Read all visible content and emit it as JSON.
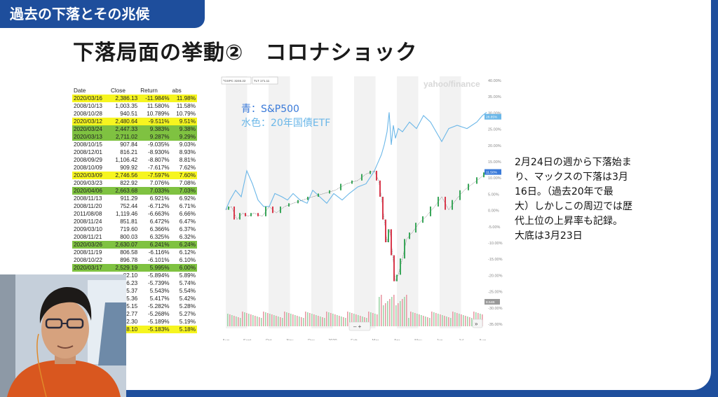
{
  "header": {
    "section_label": "過去の下落とその兆候"
  },
  "slide": {
    "title": "下落局面の挙動②　コロナショック"
  },
  "table": {
    "columns": [
      "Date",
      "Close",
      "Return",
      "abs"
    ],
    "rows": [
      {
        "date": "2020/03/16",
        "close": "2,386.13",
        "ret": "-11.984%",
        "abs": "11.98%",
        "hl": "yellow"
      },
      {
        "date": "2008/10/13",
        "close": "1,003.35",
        "ret": "11.580%",
        "abs": "11.58%",
        "hl": ""
      },
      {
        "date": "2008/10/28",
        "close": "940.51",
        "ret": "10.789%",
        "abs": "10.79%",
        "hl": ""
      },
      {
        "date": "2020/03/12",
        "close": "2,480.64",
        "ret": "-9.511%",
        "abs": "9.51%",
        "hl": "yellow"
      },
      {
        "date": "2020/03/24",
        "close": "2,447.33",
        "ret": "9.383%",
        "abs": "9.38%",
        "hl": "green"
      },
      {
        "date": "2020/03/13",
        "close": "2,711.02",
        "ret": "9.287%",
        "abs": "9.29%",
        "hl": "green"
      },
      {
        "date": "2008/10/15",
        "close": "907.84",
        "ret": "-9.035%",
        "abs": "9.03%",
        "hl": ""
      },
      {
        "date": "2008/12/01",
        "close": "816.21",
        "ret": "-8.930%",
        "abs": "8.93%",
        "hl": ""
      },
      {
        "date": "2008/09/29",
        "close": "1,106.42",
        "ret": "-8.807%",
        "abs": "8.81%",
        "hl": ""
      },
      {
        "date": "2008/10/09",
        "close": "909.92",
        "ret": "-7.617%",
        "abs": "7.62%",
        "hl": ""
      },
      {
        "date": "2020/03/09",
        "close": "2,746.56",
        "ret": "-7.597%",
        "abs": "7.60%",
        "hl": "yellow"
      },
      {
        "date": "2009/03/23",
        "close": "822.92",
        "ret": "7.076%",
        "abs": "7.08%",
        "hl": ""
      },
      {
        "date": "2020/04/06",
        "close": "2,663.68",
        "ret": "7.033%",
        "abs": "7.03%",
        "hl": "green"
      },
      {
        "date": "2008/11/13",
        "close": "911.29",
        "ret": "6.921%",
        "abs": "6.92%",
        "hl": ""
      },
      {
        "date": "2008/11/20",
        "close": "752.44",
        "ret": "-6.712%",
        "abs": "6.71%",
        "hl": ""
      },
      {
        "date": "2011/08/08",
        "close": "1,119.46",
        "ret": "-6.663%",
        "abs": "6.66%",
        "hl": ""
      },
      {
        "date": "2008/11/24",
        "close": "851.81",
        "ret": "6.472%",
        "abs": "6.47%",
        "hl": ""
      },
      {
        "date": "2009/03/10",
        "close": "719.60",
        "ret": "6.366%",
        "abs": "6.37%",
        "hl": ""
      },
      {
        "date": "2008/11/21",
        "close": "800.03",
        "ret": "6.325%",
        "abs": "6.32%",
        "hl": ""
      },
      {
        "date": "2020/03/26",
        "close": "2,630.07",
        "ret": "6.241%",
        "abs": "6.24%",
        "hl": "green"
      },
      {
        "date": "2008/11/19",
        "close": "806.58",
        "ret": "-6.116%",
        "abs": "6.12%",
        "hl": ""
      },
      {
        "date": "2008/10/22",
        "close": "896.78",
        "ret": "-6.101%",
        "abs": "6.10%",
        "hl": ""
      },
      {
        "date": "2020/03/17",
        "close": "2,529.19",
        "ret": "5.995%",
        "abs": "6.00%",
        "hl": "green"
      },
      {
        "date": "",
        "close": "02.10",
        "ret": "-5.894%",
        "abs": "5.89%",
        "hl": ""
      },
      {
        "date": "",
        "close": "6.23",
        "ret": "-5.739%",
        "abs": "5.74%",
        "hl": ""
      },
      {
        "date": "",
        "close": "5.37",
        "ret": "5.543%",
        "abs": "5.54%",
        "hl": ""
      },
      {
        "date": "",
        "close": "5.36",
        "ret": "5.417%",
        "abs": "5.42%",
        "hl": ""
      },
      {
        "date": "",
        "close": "5.15",
        "ret": "-5.282%",
        "abs": "5.28%",
        "hl": ""
      },
      {
        "date": "",
        "close": "2.77",
        "ret": "-5.268%",
        "abs": "5.27%",
        "hl": ""
      },
      {
        "date": "",
        "close": "2.30",
        "ret": "-5.189%",
        "abs": "5.19%",
        "hl": ""
      },
      {
        "date": "",
        "close": "8.10",
        "ret": "-5.183%",
        "abs": "5.18%",
        "hl": "yellow"
      }
    ]
  },
  "chart": {
    "watermark": "yahoo/finance",
    "legend_tags": [
      "^GSPC 3246.22",
      "TLT 171.11"
    ],
    "overlay_blue": "青：S&P500",
    "overlay_cyan": "水色：20年国債ETF",
    "y_ticks": [
      "40.00%",
      "35.00%",
      "30.00%",
      "25.00%",
      "20.00%",
      "15.00%",
      "10.00%",
      "5.00%",
      "0.00%",
      "-5.00%",
      "-10.00%",
      "-15.00%",
      "-20.00%",
      "-25.00%",
      "-30.00%",
      "-35.00%"
    ],
    "x_ticks": [
      "Aug",
      "Sept",
      "Oct",
      "Nov",
      "Dec",
      "2020",
      "Feb",
      "Mar",
      "Apr",
      "May",
      "Jun",
      "Jul",
      "Aug"
    ],
    "badge_tlt": "28.85%",
    "badge_spx": "11.50%",
    "badge_vol": "8.54B",
    "zoom_controls": "–   +",
    "expand": "»"
  },
  "colors": {
    "accent": "#1e4e9c",
    "yellow": "#f6f51f",
    "green": "#7fc241",
    "spx": "#3a7ad9",
    "tlt": "#6bb7e8"
  },
  "annotation": {
    "lines": [
      "2月24日の週から下落始ま",
      "り、マックスの下落は3月",
      "16日。（過去20年で最",
      "大）しかしこの周辺では歴",
      "代上位の上昇率も記録。",
      "大底は3月23日"
    ]
  }
}
